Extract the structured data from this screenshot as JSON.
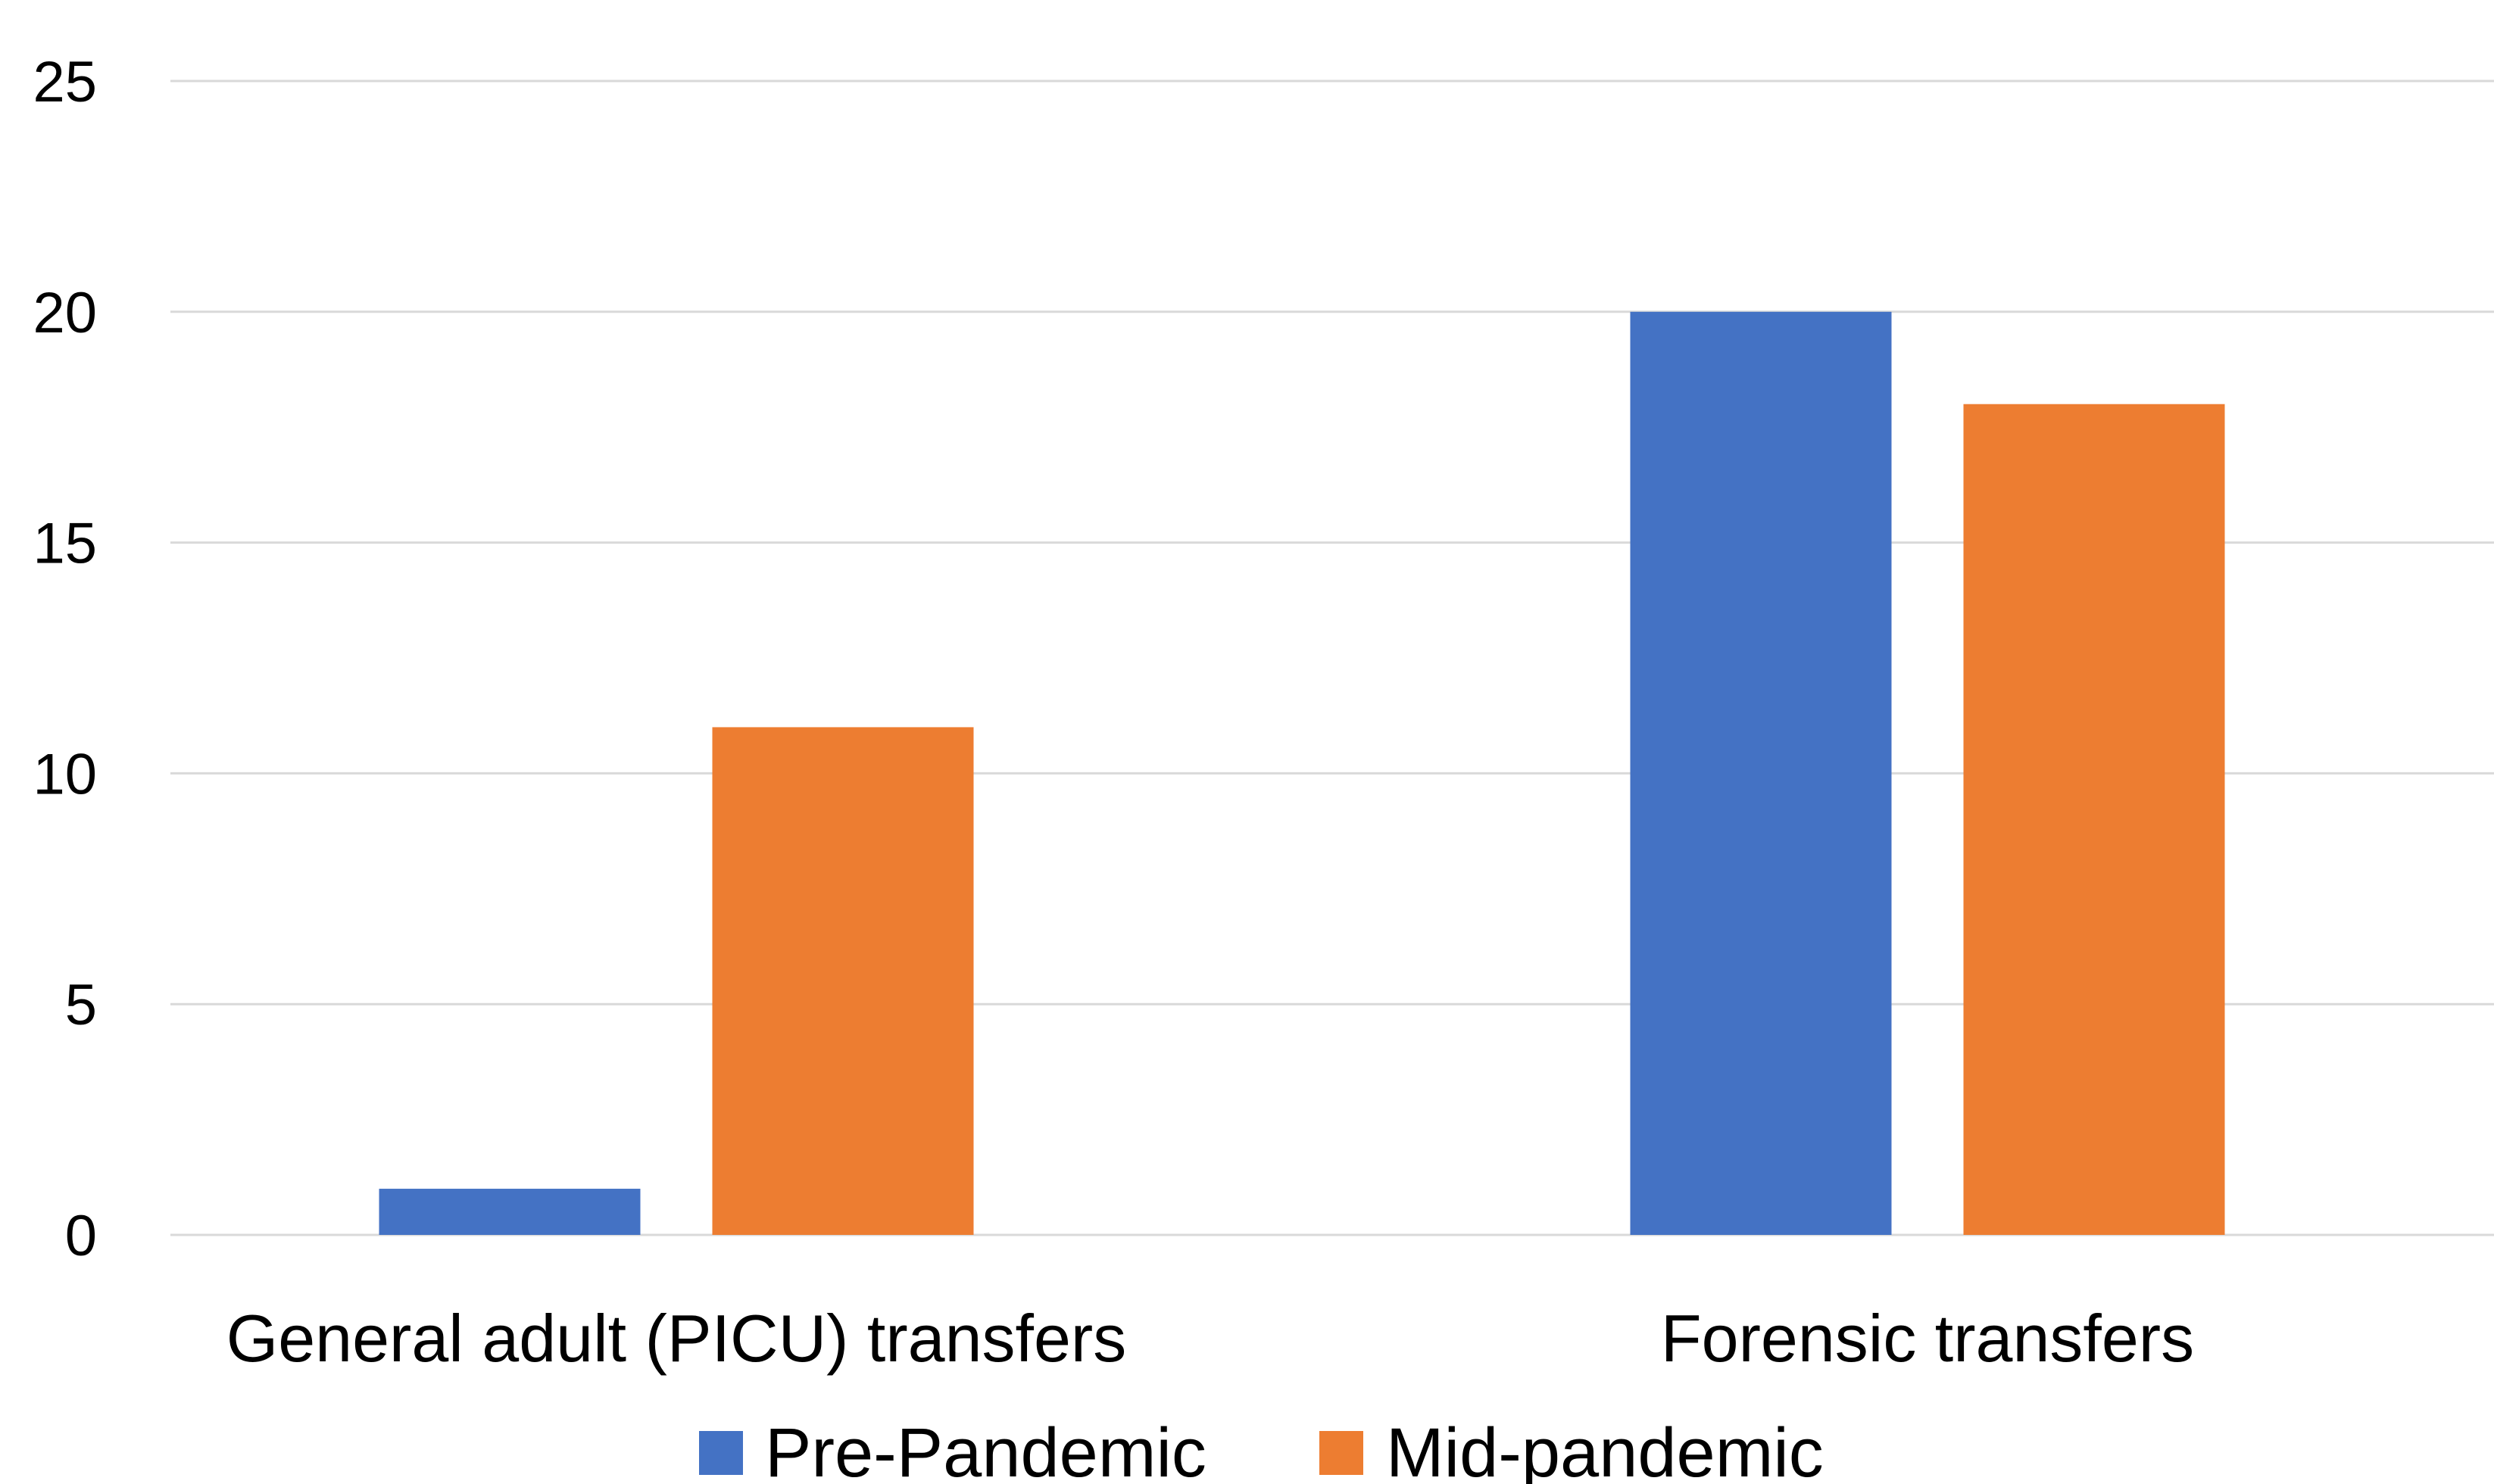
{
  "chart_data": {
    "type": "bar",
    "title": "",
    "xlabel": "",
    "ylabel": "",
    "categories": [
      "General adult (PICU) transfers",
      "Forensic transfers"
    ],
    "series": [
      {
        "name": "Pre-Pandemic",
        "values": [
          1,
          20
        ],
        "color": "#4472c4"
      },
      {
        "name": "Mid-pandemic",
        "values": [
          11,
          18
        ],
        "color": "#ed7d31"
      }
    ],
    "ylim": [
      0,
      25
    ],
    "yticks": [
      0,
      5,
      10,
      15,
      20,
      25
    ],
    "grid": true,
    "legend_position": "bottom"
  }
}
